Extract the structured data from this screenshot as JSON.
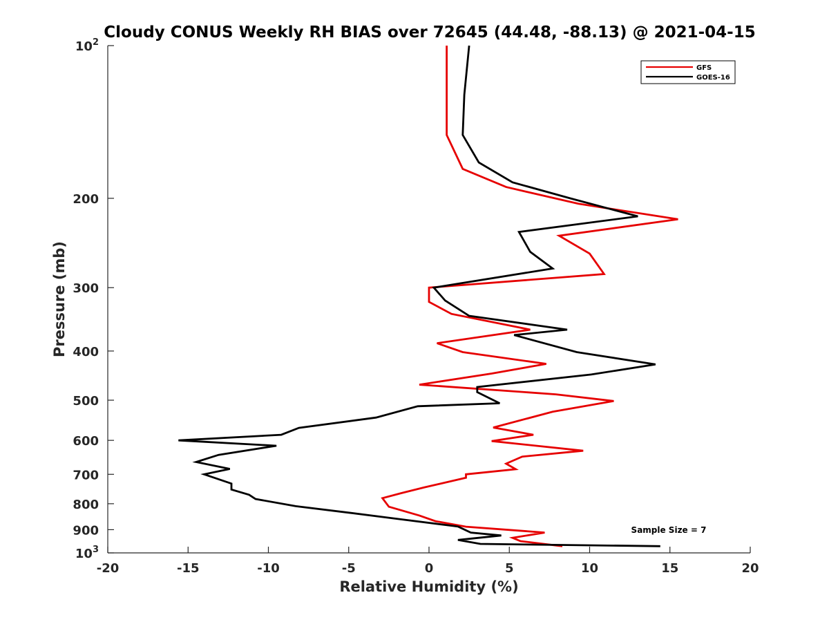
{
  "chart_data": {
    "type": "line",
    "title": "Cloudy CONUS Weekly RH BIAS over 72645 (44.48, -88.13) @ 2021-04-15",
    "xlabel": "Relative Humidity (%)",
    "ylabel": "Pressure (mb)",
    "xlim": [
      -20,
      20
    ],
    "ylim": [
      1000,
      100
    ],
    "y_scale": "log",
    "y_reversed": true,
    "grid": false,
    "legend_position": "top-right",
    "annotation": "Sample Size = 7",
    "x_ticks": [
      {
        "value": -20,
        "label": "-20"
      },
      {
        "value": -15,
        "label": "-15"
      },
      {
        "value": -10,
        "label": "-10"
      },
      {
        "value": -5,
        "label": "-5"
      },
      {
        "value": 0,
        "label": "0"
      },
      {
        "value": 5,
        "label": "5"
      },
      {
        "value": 10,
        "label": "10"
      },
      {
        "value": 15,
        "label": "15"
      },
      {
        "value": 20,
        "label": "20"
      }
    ],
    "y_ticks": [
      {
        "value": 100,
        "label": "10",
        "exp": "2"
      },
      {
        "value": 200,
        "label": "200"
      },
      {
        "value": 300,
        "label": "300"
      },
      {
        "value": 400,
        "label": "400"
      },
      {
        "value": 500,
        "label": "500"
      },
      {
        "value": 600,
        "label": "600"
      },
      {
        "value": 700,
        "label": "700"
      },
      {
        "value": 800,
        "label": "800"
      },
      {
        "value": 900,
        "label": "900"
      },
      {
        "value": 1000,
        "label": "10",
        "exp": "3"
      }
    ],
    "series": [
      {
        "name": "GFS",
        "color": "#e60000",
        "points": [
          [
            1.1,
            100
          ],
          [
            1.1,
            150
          ],
          [
            2.1,
            175
          ],
          [
            4.8,
            190
          ],
          [
            9.3,
            205
          ],
          [
            15.5,
            220
          ],
          [
            8.1,
            237
          ],
          [
            10.0,
            257
          ],
          [
            10.9,
            282
          ],
          [
            0.0,
            300
          ],
          [
            0.0,
            320
          ],
          [
            1.4,
            338
          ],
          [
            6.3,
            363
          ],
          [
            0.5,
            386
          ],
          [
            2.1,
            402
          ],
          [
            7.3,
            424
          ],
          [
            3.9,
            443
          ],
          [
            -0.6,
            466
          ],
          [
            7.9,
            487
          ],
          [
            11.5,
            502
          ],
          [
            7.7,
            527
          ],
          [
            4.0,
            566
          ],
          [
            6.5,
            585
          ],
          [
            3.9,
            602
          ],
          [
            9.6,
            629
          ],
          [
            5.8,
            646
          ],
          [
            4.8,
            667
          ],
          [
            5.4,
            684
          ],
          [
            2.3,
            700
          ],
          [
            2.3,
            711
          ],
          [
            -0.3,
            743
          ],
          [
            -1.7,
            762
          ],
          [
            -2.9,
            780
          ],
          [
            -2.5,
            811
          ],
          [
            -0.6,
            844
          ],
          [
            0.4,
            866
          ],
          [
            2.3,
            888
          ],
          [
            7.2,
            912
          ],
          [
            5.2,
            934
          ],
          [
            5.7,
            948
          ],
          [
            8.3,
            970
          ]
        ]
      },
      {
        "name": "GOES-16",
        "color": "#000000",
        "points": [
          [
            2.5,
            100
          ],
          [
            2.2,
            125
          ],
          [
            2.1,
            150
          ],
          [
            3.1,
            170
          ],
          [
            5.2,
            186
          ],
          [
            8.8,
            200
          ],
          [
            13.0,
            217
          ],
          [
            5.6,
            233
          ],
          [
            6.3,
            255
          ],
          [
            7.7,
            275
          ],
          [
            0.3,
            300
          ],
          [
            1.0,
            318
          ],
          [
            2.5,
            341
          ],
          [
            8.6,
            363
          ],
          [
            5.3,
            372
          ],
          [
            9.2,
            402
          ],
          [
            14.1,
            425
          ],
          [
            10.1,
            445
          ],
          [
            3.0,
            471
          ],
          [
            3.0,
            482
          ],
          [
            4.4,
            507
          ],
          [
            -0.7,
            514
          ],
          [
            -3.3,
            541
          ],
          [
            -8.1,
            567
          ],
          [
            -9.2,
            585
          ],
          [
            -15.6,
            600
          ],
          [
            -9.5,
            615
          ],
          [
            -13.1,
            641
          ],
          [
            -14.5,
            662
          ],
          [
            -12.4,
            683
          ],
          [
            -14.0,
            700
          ],
          [
            -12.3,
            730
          ],
          [
            -12.3,
            750
          ],
          [
            -11.2,
            768
          ],
          [
            -10.8,
            783
          ],
          [
            -8.3,
            809
          ],
          [
            -5.0,
            833
          ],
          [
            -2.1,
            856
          ],
          [
            1.8,
            887
          ],
          [
            2.6,
            912
          ],
          [
            4.5,
            924
          ],
          [
            1.8,
            943
          ],
          [
            3.2,
            960
          ],
          [
            14.4,
            970
          ]
        ]
      }
    ]
  }
}
